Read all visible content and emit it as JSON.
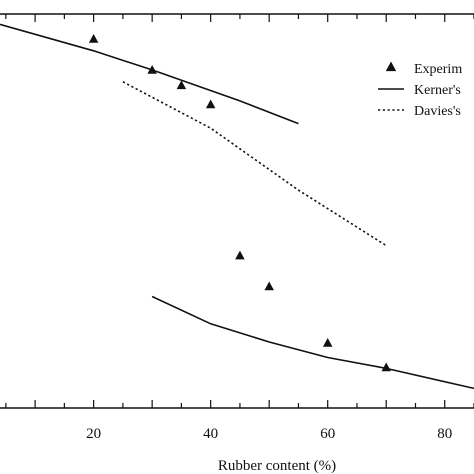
{
  "chart_data": {
    "type": "scatter",
    "xlabel": "Rubber content (%)",
    "ylabel": "",
    "xlim": [
      4,
      85
    ],
    "x_ticks_labeled": [
      20,
      40,
      60,
      80
    ],
    "x_ticks_minor_step": 5,
    "grid": false,
    "legend_position": "top-right",
    "series": [
      {
        "name": "Experim",
        "kind": "points",
        "marker": "triangle",
        "points": [
          {
            "x": 20,
            "y": 0.0
          },
          {
            "x": 30,
            "y": -0.34
          },
          {
            "x": 35,
            "y": -0.51
          },
          {
            "x": 40,
            "y": -0.72
          },
          {
            "x": 45,
            "y": -2.38
          },
          {
            "x": 50,
            "y": -2.72
          },
          {
            "x": 60,
            "y": -3.34
          },
          {
            "x": 70,
            "y": -3.61
          }
        ]
      },
      {
        "name": "Kerner's",
        "kind": "line",
        "dash": "solid",
        "segments": [
          [
            {
              "x": 4,
              "y": 0.16
            },
            {
              "x": 20,
              "y": -0.13
            },
            {
              "x": 30,
              "y": -0.34
            },
            {
              "x": 45,
              "y": -0.68
            },
            {
              "x": 55,
              "y": -0.93
            }
          ],
          [
            {
              "x": 30,
              "y": -2.83
            },
            {
              "x": 40,
              "y": -3.13
            },
            {
              "x": 50,
              "y": -3.33
            },
            {
              "x": 60,
              "y": -3.5
            },
            {
              "x": 70,
              "y": -3.62
            },
            {
              "x": 85,
              "y": -3.84
            }
          ]
        ]
      },
      {
        "name": "Davies's",
        "kind": "line",
        "dash": "dotted",
        "segments": [
          [
            {
              "x": 25,
              "y": -0.47
            },
            {
              "x": 40,
              "y": -0.98
            },
            {
              "x": 55,
              "y": -1.66
            },
            {
              "x": 70,
              "y": -2.27
            }
          ]
        ]
      }
    ]
  }
}
